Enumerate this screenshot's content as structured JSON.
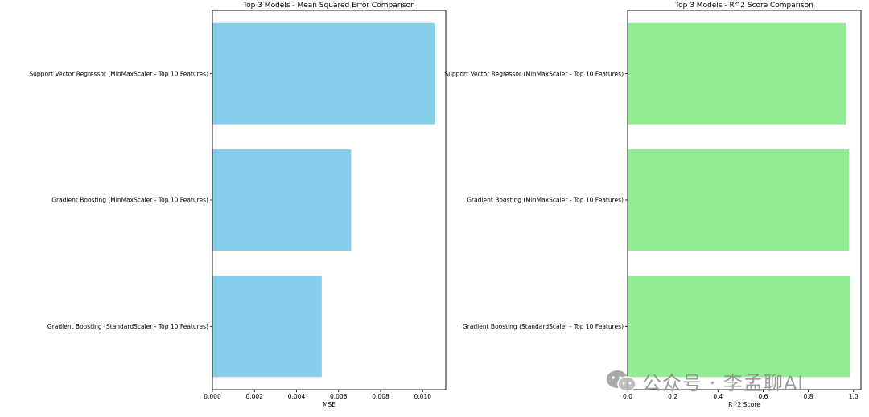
{
  "chart_data": [
    {
      "type": "bar",
      "orientation": "horizontal",
      "title": "Top 3 Models - Mean Squared Error Comparison",
      "xlabel": "MSE",
      "ylabel": "",
      "categories": [
        "Support Vector Regressor (MinMaxScaler - Top 10 Features)",
        "Gradient Boosting (MinMaxScaler - Top 10 Features)",
        "Gradient Boosting (StandardScaler - Top 10 Features)"
      ],
      "values": [
        0.0106,
        0.0066,
        0.0052
      ],
      "xlim": [
        0,
        0.0111
      ],
      "xticks": [
        "0.000",
        "0.002",
        "0.004",
        "0.006",
        "0.008",
        "0.010"
      ],
      "bar_color": "#87ceeb",
      "grid": false
    },
    {
      "type": "bar",
      "orientation": "horizontal",
      "title": "Top 3 Models - R^2 Score Comparison",
      "xlabel": "R^2 Score",
      "ylabel": "",
      "categories": [
        "Support Vector Regressor (MinMaxScaler - Top 10 Features)",
        "Gradient Boosting (MinMaxScaler - Top 10 Features)",
        "Gradient Boosting (StandardScaler - Top 10 Features)"
      ],
      "values": [
        0.966,
        0.979,
        0.984
      ],
      "xlim": [
        0,
        1.033
      ],
      "xticks": [
        "0.0",
        "0.2",
        "0.4",
        "0.6",
        "0.8",
        "1.0"
      ],
      "bar_color": "#90ee90",
      "grid": false
    }
  ],
  "watermark": {
    "text": "公众号 · 李孟聊AI",
    "icon": "wechat-icon"
  }
}
